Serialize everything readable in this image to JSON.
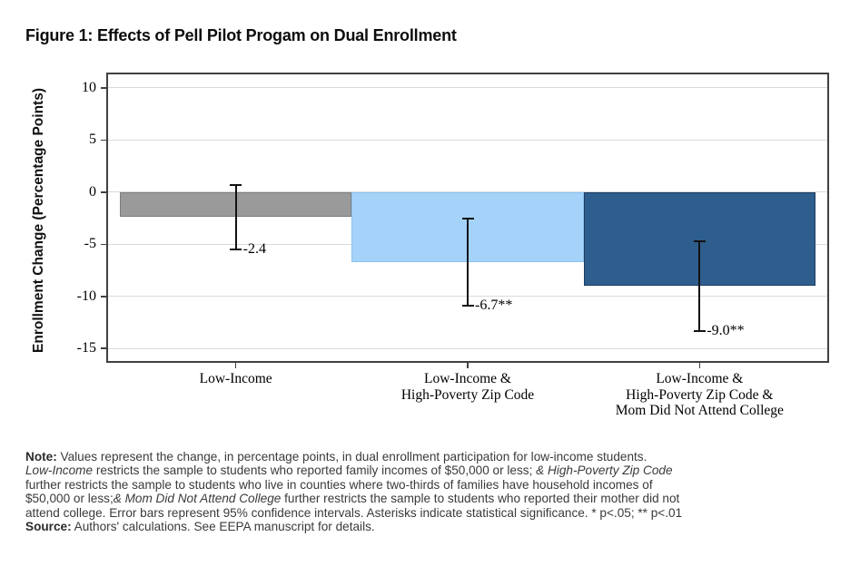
{
  "figure": {
    "title": "Figure 1: Effects of Pell Pilot Progam on Dual Enrollment"
  },
  "chart_data": {
    "type": "bar",
    "title": "Figure 1: Effects of Pell Pilot Progam on Dual Enrollment",
    "xlabel": "",
    "ylabel": "Enrollment Change (Percentage Points)",
    "ylim": [
      -16.2,
      11.3
    ],
    "yticks": [
      10,
      5,
      0,
      -5,
      -10,
      -15
    ],
    "grid": true,
    "categories": [
      [
        "Low-Income"
      ],
      [
        "Low-Income &",
        "High-Poverty Zip Code"
      ],
      [
        "Low-Income &",
        "High-Poverty Zip Code &",
        "Mom Did Not Attend College"
      ]
    ],
    "values": [
      -2.4,
      -6.7,
      -9.0
    ],
    "value_labels": [
      "-2.4",
      "-6.7**",
      "-9.0**"
    ],
    "ci_high": [
      0.7,
      -2.5,
      -4.7
    ],
    "ci_low": [
      -5.5,
      -10.9,
      -13.3
    ],
    "ci_level": "95%",
    "bar_fill_colors": [
      "#9A9A9A",
      "#A5D2F9",
      "#2E5E8D"
    ],
    "bar_border_colors": [
      "#7E7E7E",
      "#8CC2EF",
      "#1A3C63"
    ],
    "gridline_color": "#DADADA",
    "frame_color": "#404040",
    "errorbar_color": "#121212"
  },
  "note": {
    "lines": [
      [
        {
          "t": "Note:",
          "b": true
        },
        {
          "t": " Values represent the change, in percentage points, in dual enrollment participation for low-income students."
        }
      ],
      [
        {
          "t": "Low-Income",
          "i": true
        },
        {
          "t": " restricts the sample to students who reported family incomes of $50,000 or less; "
        },
        {
          "t": "& High-Poverty Zip Code",
          "i": true
        }
      ],
      [
        {
          "t": "further restricts the sample to students who live in counties where two-thirds of families have household incomes of"
        }
      ],
      [
        {
          "t": "$50,000 or less;"
        },
        {
          "t": "& Mom Did Not Attend College",
          "i": true
        },
        {
          "t": " further restricts the sample to students who reported their mother did not"
        }
      ],
      [
        {
          "t": "attend college. Error bars represent 95% confidence intervals. Asterisks indicate statistical significance. * p<.05; ** p<.01"
        }
      ],
      [
        {
          "t": "Source:",
          "b": true
        },
        {
          "t": " Authors' calculations. See EEPA manuscript for details."
        }
      ]
    ]
  }
}
